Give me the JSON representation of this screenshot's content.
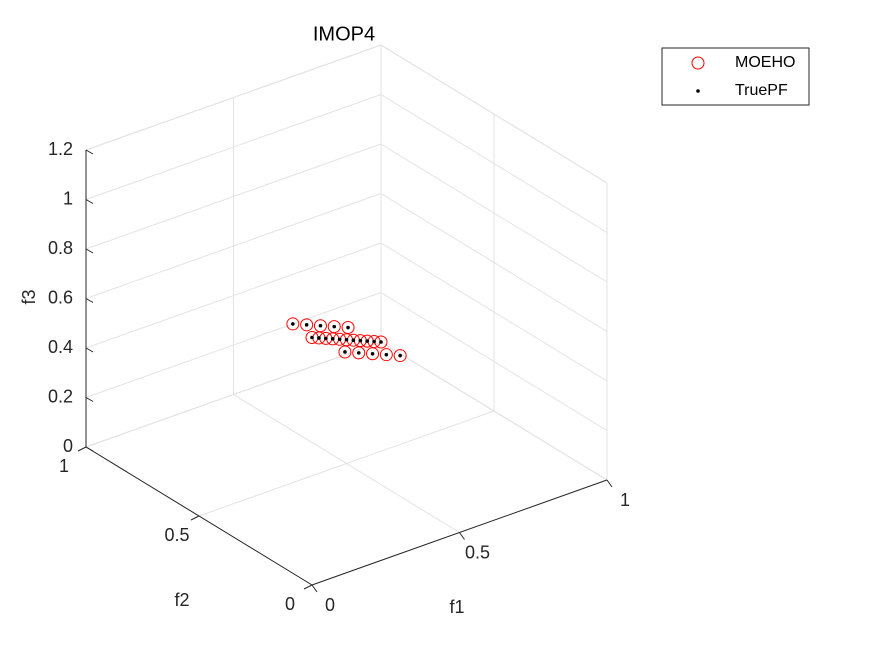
{
  "chart_data": {
    "type": "scatter3d",
    "title": "IMOP4",
    "xlabel": "f1",
    "ylabel": "f2",
    "zlabel": "f3",
    "xlim": [
      0,
      1
    ],
    "ylim": [
      0,
      1
    ],
    "zlim": [
      0,
      1.2
    ],
    "xticks": [
      0,
      0.5,
      1
    ],
    "yticks": [
      0,
      0.5,
      1
    ],
    "zticks": [
      0,
      0.2,
      0.4,
      0.6,
      0.8,
      1,
      1.2
    ],
    "grid": true,
    "legend": "northeastoutside",
    "series": [
      {
        "name": "MOEHO",
        "color": "#ff0000",
        "marker": "circle",
        "x": [
          0,
          0.05,
          0.1,
          0.15,
          0.2,
          0.25,
          0.3,
          0.35,
          0.4,
          0.45,
          0.5,
          0.55,
          0.6,
          0.65,
          0.7,
          0.75,
          0.8,
          0.85,
          0.9,
          0.95,
          1
        ],
        "y": [
          0,
          0.15,
          0.1,
          0.05,
          0.2,
          0.35,
          0.3,
          0.25,
          0.4,
          0.55,
          0.5,
          0.45,
          0.6,
          0.75,
          0.7,
          0.65,
          0.8,
          0.95,
          0.9,
          0.85,
          1
        ],
        "z": [
          1,
          0.95,
          0.9,
          0.85,
          0.8,
          0.75,
          0.7,
          0.65,
          0.6,
          0.55,
          0.5,
          0.45,
          0.4,
          0.35,
          0.3,
          0.25,
          0.2,
          0.15,
          0.1,
          0.05,
          0
        ]
      },
      {
        "name": "TruePF",
        "color": "#000000",
        "marker": "dot",
        "x": [
          0,
          0.05,
          0.1,
          0.15,
          0.2,
          0.25,
          0.3,
          0.35,
          0.4,
          0.45,
          0.5,
          0.55,
          0.6,
          0.65,
          0.7,
          0.75,
          0.8,
          0.85,
          0.9,
          0.95,
          1
        ],
        "y": [
          0,
          0.15,
          0.1,
          0.05,
          0.2,
          0.35,
          0.3,
          0.25,
          0.4,
          0.55,
          0.5,
          0.45,
          0.6,
          0.75,
          0.7,
          0.65,
          0.8,
          0.95,
          0.9,
          0.85,
          1
        ],
        "z": [
          1,
          0.95,
          0.9,
          0.85,
          0.8,
          0.75,
          0.7,
          0.65,
          0.6,
          0.55,
          0.5,
          0.45,
          0.4,
          0.35,
          0.3,
          0.25,
          0.2,
          0.15,
          0.1,
          0.05,
          0
        ]
      }
    ]
  }
}
